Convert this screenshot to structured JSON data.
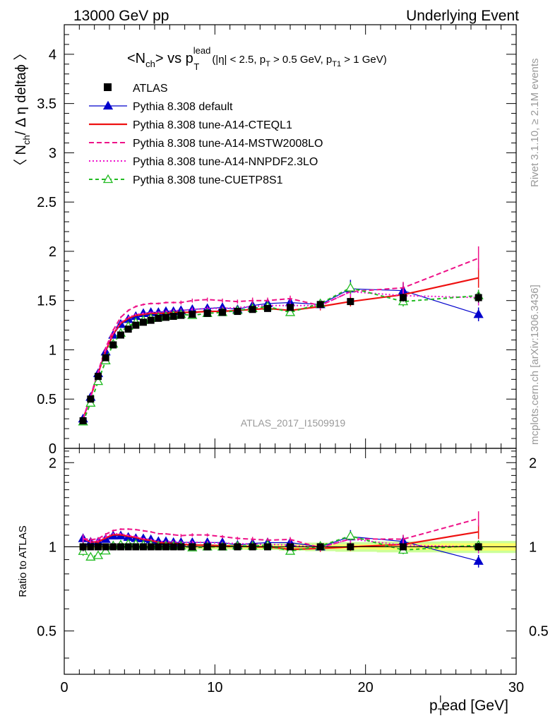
{
  "header": {
    "left_label": "13000 GeV pp",
    "right_label": "Underlying Event"
  },
  "side_labels": {
    "rivet": "Rivet 3.1.10, ≥ 2.1M events",
    "mcplots": "mcplots.cern.ch [arXiv:1306.3436]"
  },
  "colors": {
    "atlas": "#000000",
    "default": "#0000cc",
    "cteql1": "#ee1111",
    "mstw": "#ee1188",
    "nnpdf": "#ee11cc",
    "cuetp8s1": "#22bb22",
    "band_inner": "#ffff66",
    "band_outer": "#ccff99"
  },
  "chart_data": [
    {
      "id": "main",
      "type": "line",
      "title": {
        "main": "<N",
        "sub1": "ch",
        "mid": "> vs p",
        "sup": "lead",
        "sub2": "T",
        "cuts_a": "(|η| < 2.5, p",
        "cuts_a_sub": "T",
        "cuts_b": " > 0.5 GeV, p",
        "cuts_b_sub": "T1",
        "cuts_c": " > 1 GeV)"
      },
      "ylabel": {
        "a": "〈 N",
        "sub": "ch",
        "b": "/ Δ η deltaϕ 〉"
      },
      "watermark": "ATLAS_2017_I1509919",
      "xlim": [
        0,
        30
      ],
      "ylim": [
        0,
        4.3
      ],
      "yticks": [
        0,
        0.5,
        1,
        1.5,
        2,
        2.5,
        3,
        3.5,
        4
      ],
      "ytick_labels": [
        "0",
        "0.5",
        "1",
        "1.5",
        "2",
        "2.5",
        "3",
        "3.5",
        "4"
      ],
      "legend_position": "top-left",
      "x": [
        1.25,
        1.75,
        2.25,
        2.75,
        3.25,
        3.75,
        4.25,
        4.75,
        5.25,
        5.75,
        6.25,
        6.75,
        7.25,
        7.75,
        8.5,
        9.5,
        10.5,
        11.5,
        12.5,
        13.5,
        15,
        17,
        19,
        22.5,
        27.5
      ],
      "series": [
        {
          "name": "ATLAS",
          "key": "atlas",
          "style": "data",
          "values": [
            0.28,
            0.5,
            0.73,
            0.92,
            1.05,
            1.15,
            1.21,
            1.25,
            1.28,
            1.3,
            1.32,
            1.33,
            1.34,
            1.35,
            1.36,
            1.37,
            1.38,
            1.39,
            1.41,
            1.42,
            1.43,
            1.46,
            1.49,
            1.53,
            1.53
          ],
          "errors": [
            0.01,
            0.01,
            0.01,
            0.01,
            0.01,
            0.01,
            0.01,
            0.01,
            0.01,
            0.01,
            0.01,
            0.01,
            0.01,
            0.01,
            0.01,
            0.01,
            0.01,
            0.01,
            0.01,
            0.01,
            0.02,
            0.02,
            0.03,
            0.04,
            0.05
          ]
        },
        {
          "name": "Pythia 8.308 default",
          "key": "default",
          "style": "solid-triangle",
          "values": [
            0.3,
            0.52,
            0.76,
            0.98,
            1.15,
            1.26,
            1.31,
            1.34,
            1.37,
            1.38,
            1.38,
            1.39,
            1.39,
            1.4,
            1.41,
            1.42,
            1.43,
            1.41,
            1.45,
            1.47,
            1.48,
            1.46,
            1.62,
            1.6,
            1.36
          ],
          "errors": [
            0.01,
            0.01,
            0.01,
            0.01,
            0.01,
            0.01,
            0.01,
            0.01,
            0.01,
            0.01,
            0.01,
            0.01,
            0.01,
            0.02,
            0.02,
            0.02,
            0.02,
            0.02,
            0.03,
            0.03,
            0.03,
            0.04,
            0.09,
            0.08,
            0.07
          ]
        },
        {
          "name": "Pythia 8.308 tune-A14-CTEQL1",
          "key": "cteql1",
          "style": "solid",
          "values": [
            0.3,
            0.52,
            0.76,
            0.99,
            1.16,
            1.27,
            1.32,
            1.35,
            1.36,
            1.37,
            1.37,
            1.37,
            1.38,
            1.38,
            1.38,
            1.39,
            1.39,
            1.4,
            1.41,
            1.42,
            1.4,
            1.44,
            1.49,
            1.56,
            1.73
          ],
          "errors": [
            0.01,
            0.01,
            0.01,
            0.01,
            0.01,
            0.01,
            0.01,
            0.01,
            0.01,
            0.01,
            0.01,
            0.01,
            0.01,
            0.02,
            0.02,
            0.02,
            0.02,
            0.02,
            0.03,
            0.03,
            0.03,
            0.04,
            0.05,
            0.06,
            0.1
          ]
        },
        {
          "name": "Pythia 8.308 tune-A14-MSTW2008LO",
          "key": "mstw",
          "style": "dashed",
          "values": [
            0.3,
            0.53,
            0.78,
            1.02,
            1.2,
            1.33,
            1.4,
            1.44,
            1.46,
            1.47,
            1.47,
            1.48,
            1.48,
            1.48,
            1.5,
            1.51,
            1.5,
            1.49,
            1.5,
            1.5,
            1.52,
            1.45,
            1.59,
            1.63,
            1.93
          ],
          "errors": [
            0.01,
            0.01,
            0.01,
            0.01,
            0.01,
            0.01,
            0.01,
            0.01,
            0.01,
            0.01,
            0.01,
            0.01,
            0.01,
            0.02,
            0.02,
            0.02,
            0.02,
            0.02,
            0.03,
            0.03,
            0.03,
            0.04,
            0.05,
            0.06,
            0.12
          ]
        },
        {
          "name": "Pythia 8.308 tune-A14-NNPDF2.3LO",
          "key": "nnpdf",
          "style": "dotted",
          "values": [
            0.3,
            0.52,
            0.77,
            1.0,
            1.17,
            1.28,
            1.33,
            1.36,
            1.37,
            1.38,
            1.38,
            1.39,
            1.4,
            1.4,
            1.41,
            1.42,
            1.42,
            1.43,
            1.44,
            1.45,
            1.45,
            1.45,
            1.59,
            1.55,
            1.53
          ],
          "errors": [
            0.01,
            0.01,
            0.01,
            0.01,
            0.01,
            0.01,
            0.01,
            0.01,
            0.01,
            0.01,
            0.01,
            0.01,
            0.01,
            0.02,
            0.02,
            0.02,
            0.02,
            0.02,
            0.03,
            0.03,
            0.03,
            0.04,
            0.05,
            0.06,
            0.08
          ]
        },
        {
          "name": "Pythia 8.308 tune-CUETP8S1",
          "key": "cuetp8s1",
          "style": "dashed-open-triangle",
          "values": [
            0.27,
            0.46,
            0.68,
            0.89,
            1.06,
            1.17,
            1.24,
            1.28,
            1.3,
            1.32,
            1.33,
            1.34,
            1.35,
            1.36,
            1.35,
            1.37,
            1.38,
            1.4,
            1.42,
            1.44,
            1.38,
            1.47,
            1.63,
            1.49,
            1.55
          ],
          "errors": [
            0.01,
            0.01,
            0.01,
            0.01,
            0.01,
            0.01,
            0.01,
            0.01,
            0.01,
            0.01,
            0.01,
            0.01,
            0.01,
            0.02,
            0.02,
            0.02,
            0.02,
            0.02,
            0.03,
            0.03,
            0.03,
            0.04,
            0.06,
            0.05,
            0.06
          ]
        }
      ]
    },
    {
      "id": "ratio",
      "type": "line",
      "ylabel": "Ratio to ATLAS",
      "xlabel": {
        "a": "p",
        "sub": "T",
        "sup": "l",
        "b": "ead [GeV]"
      },
      "xlim": [
        0,
        30
      ],
      "ylim": [
        0.35,
        2.25
      ],
      "yticks": [
        0.5,
        1,
        2
      ],
      "ytick_labels": [
        "0.5",
        "1",
        "2"
      ],
      "xticks": [
        0,
        10,
        20,
        30
      ],
      "xtick_labels": [
        "0",
        "10",
        "20",
        "30"
      ],
      "band": {
        "inner": [
          0.01,
          0.01,
          0.01,
          0.01,
          0.01,
          0.01,
          0.01,
          0.01,
          0.01,
          0.01,
          0.01,
          0.01,
          0.01,
          0.01,
          0.012,
          0.012,
          0.012,
          0.014,
          0.014,
          0.015,
          0.016,
          0.018,
          0.02,
          0.025,
          0.03
        ],
        "outer": [
          0.02,
          0.02,
          0.02,
          0.02,
          0.02,
          0.02,
          0.02,
          0.02,
          0.02,
          0.02,
          0.02,
          0.02,
          0.02,
          0.02,
          0.022,
          0.022,
          0.022,
          0.024,
          0.025,
          0.026,
          0.03,
          0.035,
          0.04,
          0.045,
          0.05
        ]
      }
    }
  ]
}
